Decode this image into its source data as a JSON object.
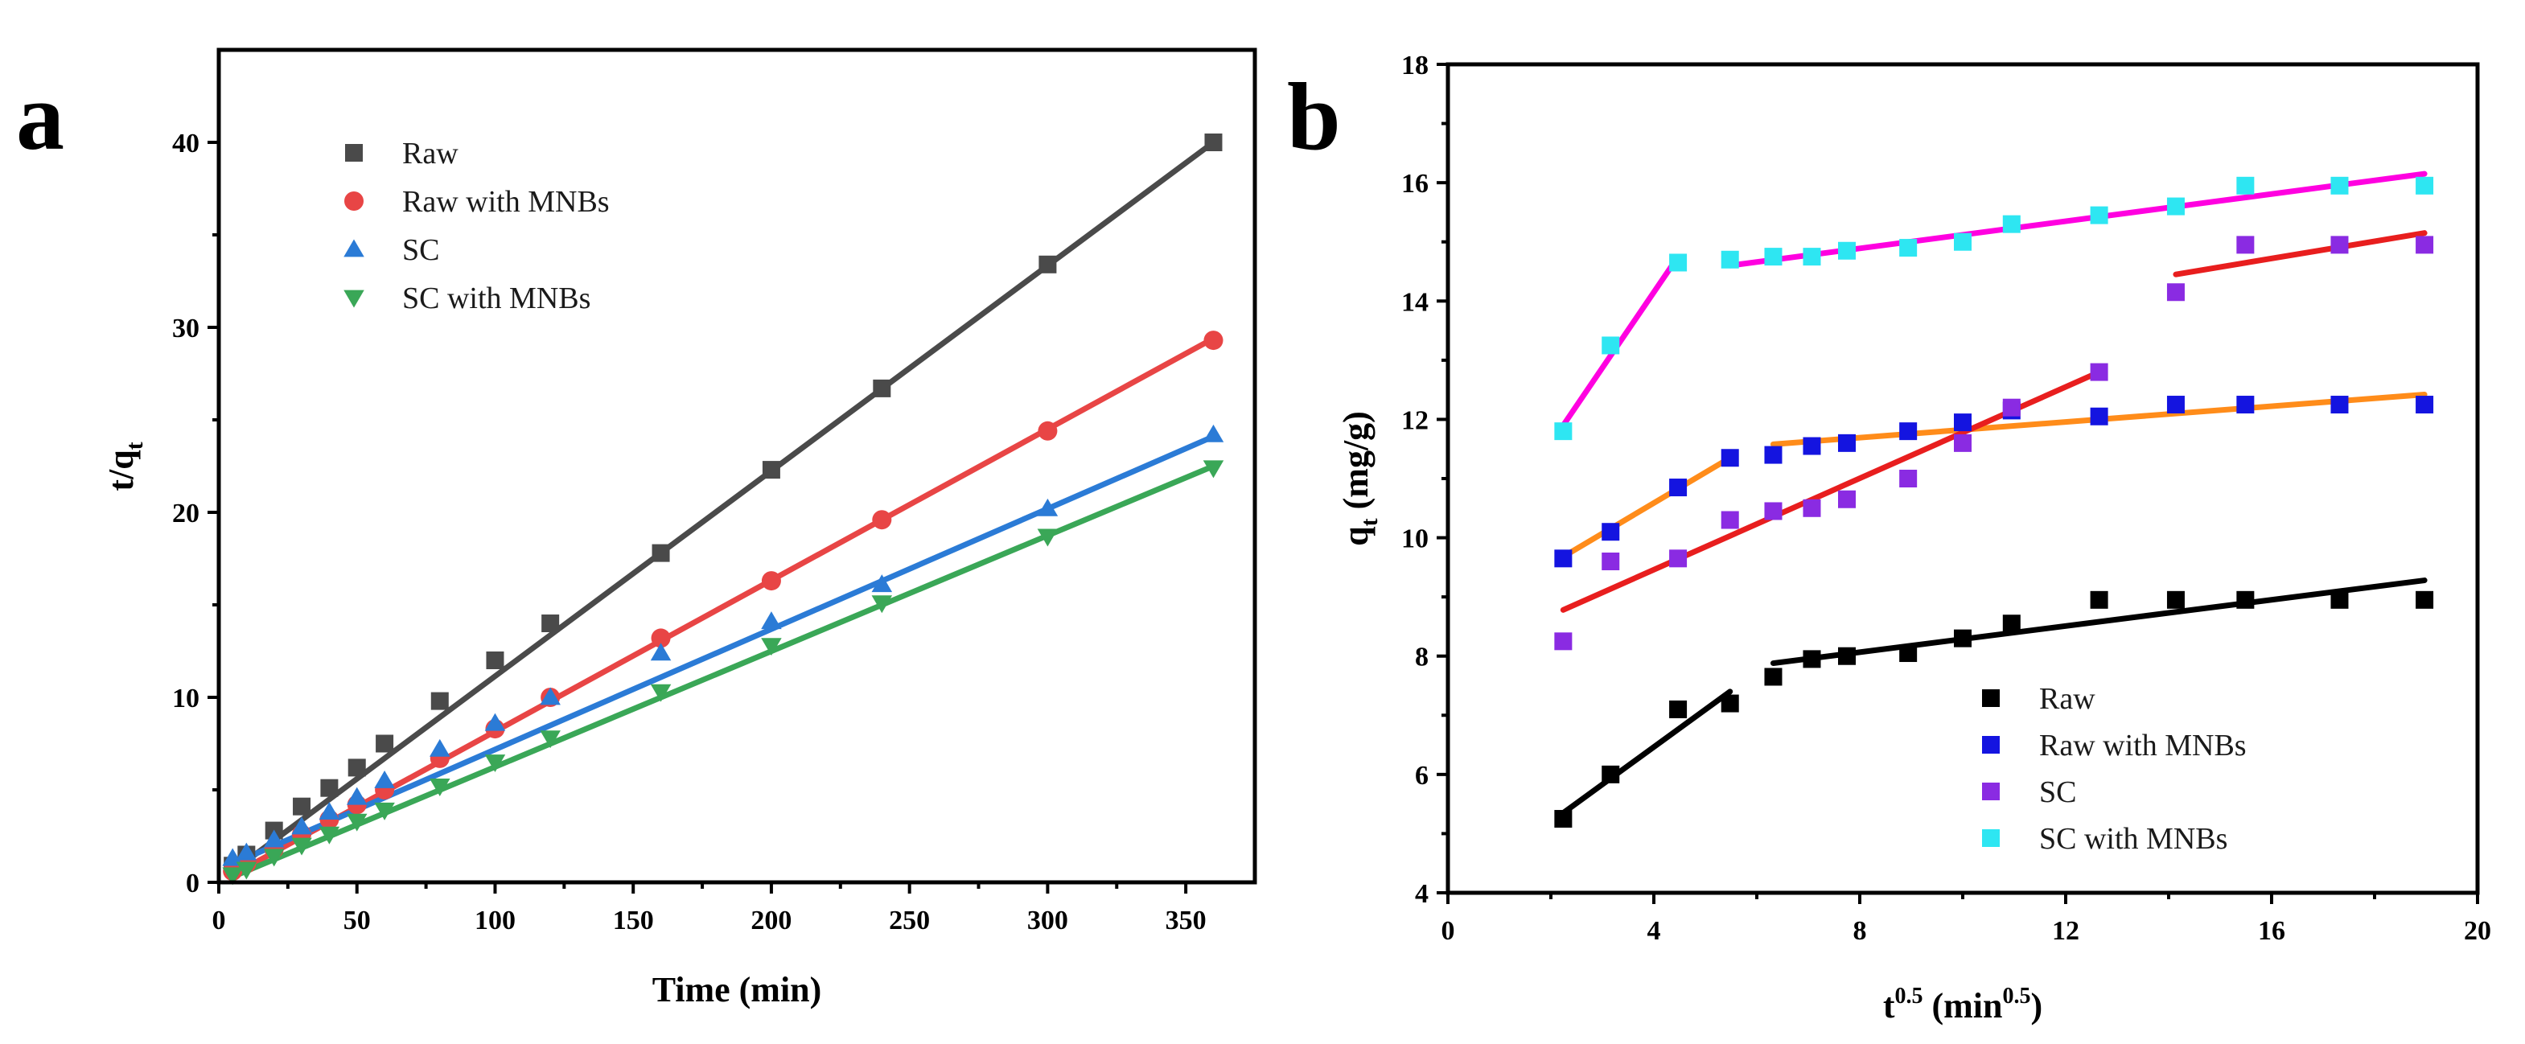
{
  "chart_data": [
    {
      "panel": "a",
      "type": "scatter",
      "xlabel": "Time (min)",
      "ylabel_main": "t/q",
      "ylabel_sub": "t",
      "xlim": [
        0,
        375
      ],
      "ylim": [
        0,
        45
      ],
      "xticks": [
        0,
        50,
        100,
        150,
        200,
        250,
        300,
        350
      ],
      "yticks": [
        0,
        10,
        20,
        30,
        40
      ],
      "legend_position": "top-left",
      "series": [
        {
          "name": "Raw",
          "color": "#4a4a4a",
          "marker": "square",
          "x": [
            5,
            10,
            20,
            30,
            40,
            50,
            60,
            80,
            100,
            120,
            160,
            200,
            240,
            300,
            360
          ],
          "y": [
            0.9,
            1.5,
            2.8,
            4.1,
            5.1,
            6.2,
            7.5,
            9.8,
            12.0,
            14.0,
            17.8,
            22.3,
            26.7,
            33.4,
            40.0
          ],
          "fit": [
            [
              5,
              0.6
            ],
            [
              360,
              40.0
            ]
          ]
        },
        {
          "name": "Raw with MNBs",
          "color": "#e84545",
          "marker": "circle",
          "x": [
            5,
            10,
            20,
            30,
            40,
            50,
            60,
            80,
            100,
            120,
            160,
            200,
            240,
            300,
            360
          ],
          "y": [
            0.6,
            1.0,
            1.8,
            2.6,
            3.4,
            4.2,
            5.0,
            6.7,
            8.3,
            10.0,
            13.2,
            16.3,
            19.6,
            24.4,
            29.3
          ],
          "fit": [
            [
              5,
              0.4
            ],
            [
              360,
              29.4
            ]
          ]
        },
        {
          "name": "SC",
          "color": "#2b7bd6",
          "marker": "triangle-up",
          "x": [
            5,
            10,
            20,
            30,
            40,
            50,
            60,
            80,
            100,
            120,
            160,
            200,
            240,
            300,
            360
          ],
          "y": [
            1.3,
            1.6,
            2.3,
            3.0,
            3.8,
            4.6,
            5.5,
            7.2,
            8.6,
            10.0,
            12.4,
            14.1,
            16.1,
            20.2,
            24.2
          ],
          "fit": [
            [
              5,
              1.0
            ],
            [
              360,
              24.1
            ]
          ]
        },
        {
          "name": "SC with MNBs",
          "color": "#3aa757",
          "marker": "triangle-down",
          "x": [
            5,
            10,
            20,
            30,
            40,
            50,
            60,
            80,
            100,
            120,
            160,
            200,
            240,
            300,
            360
          ],
          "y": [
            0.4,
            0.7,
            1.4,
            2.0,
            2.6,
            3.3,
            3.9,
            5.2,
            6.5,
            7.8,
            10.3,
            12.8,
            15.1,
            18.7,
            22.4
          ],
          "fit": [
            [
              5,
              0.3
            ],
            [
              360,
              22.5
            ]
          ]
        }
      ]
    },
    {
      "panel": "b",
      "type": "scatter",
      "xlabel_main": "t",
      "xlabel_sup": "0.5",
      "xlabel_unit_main": " (min",
      "xlabel_unit_sup": "0.5",
      "xlabel_close": ")",
      "ylabel_main": "q",
      "ylabel_sub": "t",
      "ylabel_unit": " (mg/g)",
      "xlim": [
        0,
        20
      ],
      "ylim": [
        4,
        18
      ],
      "xticks": [
        0,
        4,
        8,
        12,
        16,
        20
      ],
      "yticks": [
        4,
        6,
        8,
        10,
        12,
        14,
        16,
        18
      ],
      "legend_position": "bottom-right",
      "series": [
        {
          "name": "Raw",
          "color": "#000000",
          "marker": "square",
          "x": [
            2.24,
            3.16,
            4.47,
            5.48,
            6.32,
            7.07,
            7.75,
            8.94,
            10.0,
            10.95,
            12.65,
            14.14,
            15.49,
            17.32,
            18.97
          ],
          "y": [
            5.25,
            6.0,
            7.1,
            7.2,
            7.65,
            7.95,
            8.0,
            8.05,
            8.3,
            8.55,
            8.95,
            8.95,
            8.95,
            8.95,
            8.95
          ],
          "fits": [
            [
              [
                2.24,
                5.35
              ],
              [
                5.48,
                7.4
              ]
            ],
            [
              [
                6.32,
                7.88
              ],
              [
                18.97,
                9.28
              ]
            ]
          ]
        },
        {
          "name": "Raw with MNBs",
          "color": "#1414e0",
          "marker": "square",
          "x": [
            2.24,
            3.16,
            4.47,
            5.48,
            6.32,
            7.07,
            7.75,
            8.94,
            10.0,
            10.95,
            12.65,
            14.14,
            15.49,
            17.32,
            18.97
          ],
          "y": [
            9.65,
            10.1,
            10.85,
            11.35,
            11.4,
            11.55,
            11.6,
            11.8,
            11.95,
            12.15,
            12.05,
            12.25,
            12.25,
            12.25,
            12.25
          ],
          "fits": [
            [
              [
                2.24,
                9.68
              ],
              [
                5.48,
                11.35
              ]
            ],
            [
              [
                6.32,
                11.58
              ],
              [
                18.97,
                12.42
              ]
            ]
          ]
        },
        {
          "name": "SC",
          "color": "#8a2be2",
          "marker": "square",
          "x": [
            2.24,
            3.16,
            4.47,
            5.48,
            6.32,
            7.07,
            7.75,
            8.94,
            10.0,
            10.95,
            12.65,
            14.14,
            15.49,
            17.32,
            18.97
          ],
          "y": [
            8.25,
            9.6,
            9.65,
            10.3,
            10.45,
            10.5,
            10.65,
            11.0,
            11.6,
            12.2,
            12.8,
            14.15,
            14.95,
            14.95,
            14.95
          ],
          "fits": [
            [
              [
                2.24,
                8.78
              ],
              [
                12.65,
                12.8
              ]
            ],
            [
              [
                14.14,
                14.45
              ],
              [
                18.97,
                15.15
              ]
            ]
          ]
        },
        {
          "name": "SC with MNBs",
          "color": "#2ee6f2",
          "marker": "square",
          "x": [
            2.24,
            3.16,
            4.47,
            5.48,
            6.32,
            7.07,
            7.75,
            8.94,
            10.0,
            10.95,
            12.65,
            14.14,
            15.49,
            17.32,
            18.97
          ],
          "y": [
            11.8,
            13.25,
            14.65,
            14.7,
            14.75,
            14.75,
            14.85,
            14.9,
            15.0,
            15.3,
            15.45,
            15.6,
            15.95,
            15.95,
            15.95
          ],
          "fits": [
            [
              [
                2.24,
                11.9
              ],
              [
                4.47,
                14.75
              ]
            ],
            [
              [
                5.48,
                14.6
              ],
              [
                18.97,
                16.15
              ]
            ]
          ]
        }
      ],
      "fit_colors": [
        "#000000",
        "#ff8c1a",
        "#e81e1e",
        "#ff00e0"
      ]
    }
  ]
}
